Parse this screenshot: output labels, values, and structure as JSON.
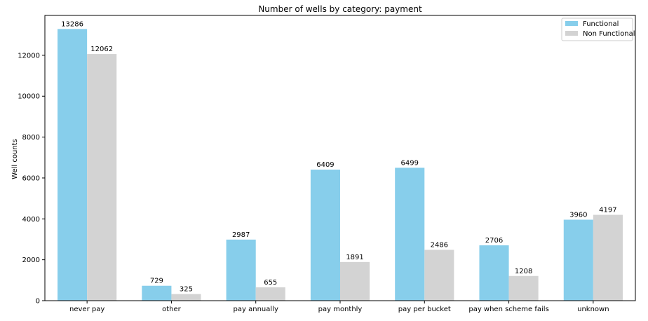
{
  "chart_data": {
    "type": "bar",
    "title": "Number of wells by category: payment",
    "xlabel": "",
    "ylabel": "Well counts",
    "categories": [
      "never pay",
      "other",
      "pay annually",
      "pay monthly",
      "pay per bucket",
      "pay when scheme fails",
      "unknown"
    ],
    "series": [
      {
        "name": "Functional",
        "color": "#87ceeb",
        "values": [
          13286,
          729,
          2987,
          6409,
          6499,
          2706,
          3960
        ]
      },
      {
        "name": "Non Functional",
        "color": "#d3d3d3",
        "values": [
          12062,
          325,
          655,
          1891,
          2486,
          1208,
          4197
        ]
      }
    ],
    "ylim": [
      0,
      13950
    ],
    "yticks": [
      0,
      2000,
      4000,
      6000,
      8000,
      10000,
      12000
    ],
    "grid": false,
    "legend_position": "top-right",
    "data_labels": true
  }
}
